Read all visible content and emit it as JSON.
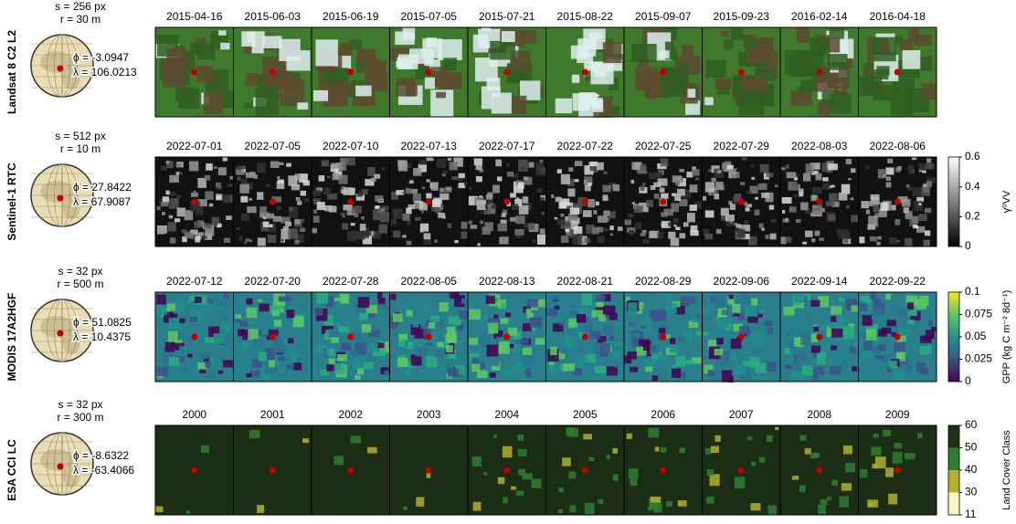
{
  "rows": [
    {
      "sensor": "Landsat 8 C2 L2",
      "size": "s = 256 px",
      "resolution": "r = 30 m",
      "lat": "ϕ = -3.0947",
      "lon": "λ = 106.0213",
      "dates": [
        "2015-04-16",
        "2015-06-03",
        "2015-06-19",
        "2015-07-05",
        "2015-07-21",
        "2015-08-22",
        "2015-09-07",
        "2015-09-23",
        "2016-02-14",
        "2016-04-18"
      ]
    },
    {
      "sensor": "Sentinel-1 RTC",
      "size": "s = 512 px",
      "resolution": "r = 10 m",
      "lat": "ϕ = 27.8422",
      "lon": "λ = 67.9087",
      "dates": [
        "2022-07-01",
        "2022-07-05",
        "2022-07-10",
        "2022-07-13",
        "2022-07-17",
        "2022-07-22",
        "2022-07-25",
        "2022-07-29",
        "2022-08-03",
        "2022-08-06"
      ],
      "colorbar": {
        "label": "γ⁰VV",
        "ticks": [
          "0.6",
          "0.4",
          "0.2",
          "0"
        ]
      }
    },
    {
      "sensor": "MODIS 17A2HGF",
      "size": "s = 32 px",
      "resolution": "r = 500 m",
      "lat": "ϕ = 51.0825",
      "lon": "λ = 10.4375",
      "dates": [
        "2022-07-12",
        "2022-07-20",
        "2022-07-28",
        "2022-08-05",
        "2022-08-13",
        "2022-08-21",
        "2022-08-29",
        "2022-09-06",
        "2022-09-14",
        "2022-09-22"
      ],
      "colorbar": {
        "label": "GPP (kg C m⁻² 8d⁻¹)",
        "ticks": [
          "0.1",
          "0.075",
          "0.05",
          "0.025",
          "0"
        ]
      }
    },
    {
      "sensor": "ESA CCI LC",
      "size": "s = 32 px",
      "resolution": "r = 300 m",
      "lat": "ϕ = -8.6322",
      "lon": "λ = -63.4066",
      "dates": [
        "2000",
        "2001",
        "2002",
        "2003",
        "2004",
        "2005",
        "2006",
        "2007",
        "2008",
        "2009"
      ],
      "colorbar": {
        "label": "Land Cover Class",
        "ticks": [
          "60",
          "50",
          "40",
          "30",
          "11"
        ]
      }
    }
  ]
}
